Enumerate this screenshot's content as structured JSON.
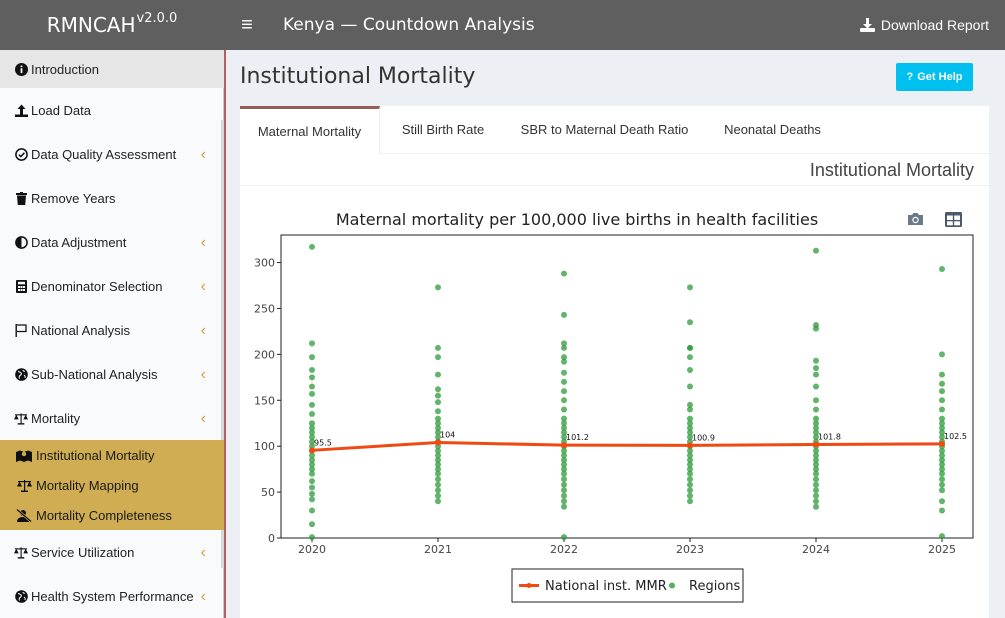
{
  "header": {
    "brand": "RMNCAH",
    "version": "v2.0.0",
    "title": "Kenya — Countdown Analysis",
    "download_label": "Download Report"
  },
  "sidebar": {
    "items": [
      {
        "label": "Introduction",
        "icon": "info-circle-icon",
        "chevron": false
      },
      {
        "label": "Load Data",
        "icon": "upload-icon",
        "chevron": false
      },
      {
        "label": "Data Quality Assessment",
        "icon": "check-circle-icon",
        "chevron": true
      },
      {
        "label": "Remove Years",
        "icon": "trash-icon",
        "chevron": false
      },
      {
        "label": "Data Adjustment",
        "icon": "adjust-icon",
        "chevron": true
      },
      {
        "label": "Denominator Selection",
        "icon": "calculator-icon",
        "chevron": true
      },
      {
        "label": "National Analysis",
        "icon": "flag-icon",
        "chevron": true
      },
      {
        "label": "Sub-National Analysis",
        "icon": "globe-icon",
        "chevron": true
      },
      {
        "label": "Mortality",
        "icon": "scale-icon",
        "chevron": true
      },
      {
        "label": "Service Utilization",
        "icon": "scale-icon",
        "chevron": true
      },
      {
        "label": "Health System Performance",
        "icon": "globe-icon",
        "chevron": true
      }
    ],
    "sub_items": [
      {
        "label": "Institutional Mortality",
        "icon": "map-icon"
      },
      {
        "label": "Mortality Mapping",
        "icon": "scale-icon"
      },
      {
        "label": "Mortality Completeness",
        "icon": "user-slash-icon"
      }
    ]
  },
  "page": {
    "title": "Institutional Mortality",
    "help_label": "Get Help"
  },
  "tabs": [
    "Maternal Mortality",
    "Still Birth Rate",
    "SBR to Maternal Death Ratio",
    "Neonatal Deaths"
  ],
  "active_tab": "Maternal Mortality",
  "panel_heading": "Institutional Mortality",
  "colors": {
    "header": "#5f5f5f",
    "submenu": "#d0ad52",
    "accent": "#00c0ef",
    "national_line": "#f04a12",
    "regions": "#2e9b3a"
  },
  "chart_data": {
    "type": "scatter",
    "title": "Maternal mortality per 100,000 live births in health facilities",
    "x": [
      2020,
      2021,
      2022,
      2023,
      2024,
      2025
    ],
    "ylim": [
      0,
      330
    ],
    "yticks": [
      0,
      50,
      100,
      150,
      200,
      250,
      300
    ],
    "grid": false,
    "legend_position": "bottom",
    "series": [
      {
        "name": "National inst. MMR",
        "type": "line",
        "values": [
          95.5,
          104,
          101.2,
          100.9,
          101.8,
          102.5
        ],
        "labels": [
          "95.5",
          "104",
          "101.2",
          "100.9",
          "101.8",
          "102.5"
        ]
      },
      {
        "name": "Regions",
        "type": "scatter",
        "points": [
          [
            317,
            212,
            197,
            183,
            175,
            165,
            157,
            145,
            135,
            125,
            120,
            115,
            110,
            105,
            100,
            95,
            90,
            85,
            80,
            75,
            70,
            62,
            55,
            48,
            42,
            30,
            15,
            1
          ],
          [
            273,
            207,
            197,
            178,
            162,
            155,
            148,
            138,
            130,
            125,
            120,
            115,
            110,
            105,
            100,
            95,
            90,
            85,
            80,
            75,
            70,
            64,
            58,
            52,
            46,
            40
          ],
          [
            288,
            243,
            212,
            207,
            197,
            192,
            180,
            170,
            160,
            150,
            140,
            130,
            125,
            120,
            115,
            110,
            105,
            100,
            95,
            90,
            85,
            80,
            75,
            70,
            64,
            58,
            52,
            46,
            40,
            34,
            1
          ],
          [
            273,
            235,
            207,
            207,
            197,
            183,
            165,
            145,
            140,
            130,
            125,
            120,
            115,
            110,
            105,
            100,
            95,
            90,
            85,
            80,
            75,
            70,
            64,
            58,
            52,
            46,
            40
          ],
          [
            313,
            232,
            228,
            193,
            185,
            178,
            165,
            150,
            140,
            130,
            125,
            120,
            115,
            110,
            105,
            100,
            95,
            90,
            85,
            80,
            75,
            70,
            64,
            58,
            52,
            46,
            40,
            34
          ],
          [
            293,
            200,
            178,
            168,
            160,
            150,
            140,
            130,
            125,
            120,
            115,
            110,
            105,
            100,
            95,
            90,
            85,
            80,
            75,
            70,
            64,
            58,
            52,
            40,
            30,
            2
          ]
        ]
      }
    ]
  }
}
